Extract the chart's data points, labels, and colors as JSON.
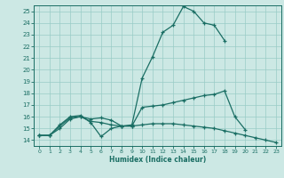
{
  "xlabel": "Humidex (Indice chaleur)",
  "xlim": [
    -0.5,
    23.5
  ],
  "ylim": [
    13.5,
    25.5
  ],
  "xticks": [
    0,
    1,
    2,
    3,
    4,
    5,
    6,
    7,
    8,
    9,
    10,
    11,
    12,
    13,
    14,
    15,
    16,
    17,
    18,
    19,
    20,
    21,
    22,
    23
  ],
  "yticks": [
    14,
    15,
    16,
    17,
    18,
    19,
    20,
    21,
    22,
    23,
    24,
    25
  ],
  "bg_color": "#cce8e4",
  "line_color": "#1a6e64",
  "grid_color": "#99ccc6",
  "line1_x": [
    0,
    1,
    2,
    3,
    4,
    5,
    6,
    7,
    8,
    9,
    10,
    11,
    12,
    13,
    14,
    15,
    16,
    17,
    18
  ],
  "line1_y": [
    14.4,
    14.4,
    15.3,
    16.0,
    16.1,
    15.5,
    14.3,
    15.0,
    15.2,
    15.3,
    19.3,
    21.1,
    23.2,
    23.8,
    25.4,
    25.0,
    24.0,
    23.8,
    22.5
  ],
  "line2_x": [
    0,
    1,
    2,
    3,
    4,
    5,
    6,
    7,
    8,
    9,
    10,
    11,
    12,
    13,
    14,
    15,
    16,
    17,
    18,
    19,
    20
  ],
  "line2_y": [
    14.4,
    14.4,
    15.2,
    15.9,
    16.0,
    15.8,
    15.9,
    15.7,
    15.2,
    15.2,
    16.8,
    16.9,
    17.0,
    17.2,
    17.4,
    17.6,
    17.8,
    17.9,
    18.2,
    16.0,
    14.9
  ],
  "line3_x": [
    0,
    1,
    2,
    3,
    4,
    5,
    6,
    7,
    8,
    9,
    10,
    11,
    12,
    13,
    14,
    15,
    16,
    17,
    18,
    19,
    20,
    21,
    22,
    23
  ],
  "line3_y": [
    14.4,
    14.4,
    15.0,
    15.8,
    16.0,
    15.6,
    15.5,
    15.3,
    15.2,
    15.2,
    15.3,
    15.4,
    15.4,
    15.4,
    15.3,
    15.2,
    15.1,
    15.0,
    14.8,
    14.6,
    14.4,
    14.2,
    14.0,
    13.8
  ]
}
